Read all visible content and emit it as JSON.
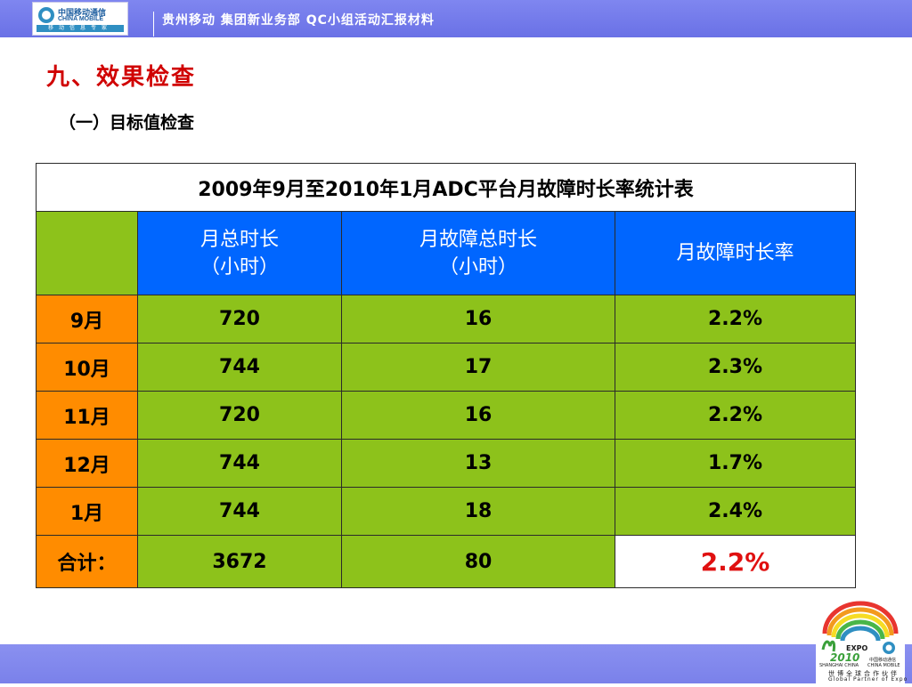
{
  "header": {
    "logo": {
      "cn": "中国移动通信",
      "en": "CHINA MOBILE",
      "slogan": "移动信息专家"
    },
    "title": "贵州移动  集团新业务部  QC小组活动汇报材料"
  },
  "section_title": "九、效果检查",
  "subsection_title": "（一）目标值检查",
  "table": {
    "caption": "2009年9月至2010年1月ADC平台月故障时长率统计表",
    "columns": [
      {
        "line1": "月总时长",
        "line2": "（小时）"
      },
      {
        "line1": "月故障总时长",
        "line2": "（小时）"
      },
      {
        "line1": "月故障时长率",
        "line2": ""
      }
    ],
    "rows": [
      {
        "month": "9月",
        "total": "720",
        "fault": "16",
        "rate": "2.2%"
      },
      {
        "month": "10月",
        "total": "744",
        "fault": "17",
        "rate": "2.3%"
      },
      {
        "month": "11月",
        "total": "720",
        "fault": "16",
        "rate": "2.2%"
      },
      {
        "month": "12月",
        "total": "744",
        "fault": "13",
        "rate": "1.7%"
      },
      {
        "month": "1月",
        "total": "744",
        "fault": "18",
        "rate": "2.4%"
      }
    ],
    "total": {
      "label": "合计：",
      "total": "3672",
      "fault": "80",
      "rate": "2.2%"
    }
  },
  "footer_logo": {
    "expo": "EXPO",
    "expo_year": "2010",
    "city": "SHANGHAI CHINA",
    "brand_cn": "中国移动通信",
    "brand_en": "CHINA MOBILE",
    "partner_cn": "世博全球合作伙伴",
    "partner_en": "Global Partner of Expo"
  },
  "colors": {
    "header_bg": "#6a71e6",
    "title_red": "#d00000",
    "table_header_blue": "#0066ff",
    "cell_green": "#8dc21b",
    "row_label_orange": "#ff8c00",
    "highlight_red": "#e01010"
  }
}
